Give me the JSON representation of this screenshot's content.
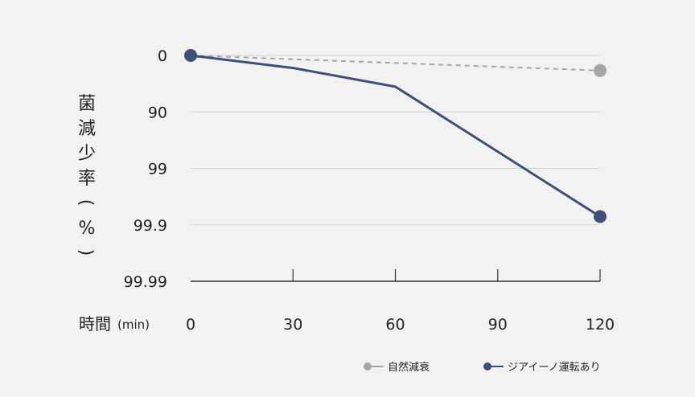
{
  "chart_data": {
    "type": "line",
    "ylabel_chars": [
      "菌",
      "減",
      "少",
      "率",
      "(",
      "%",
      ")"
    ],
    "xlabel": "時間",
    "xlabel_unit": "(min)",
    "y_scale": "log-reduction",
    "y_ticks": [
      "0",
      "90",
      "99",
      "99.9",
      "99.99"
    ],
    "x_ticks": [
      "0",
      "30",
      "60",
      "90",
      "120"
    ],
    "x": [
      0,
      30,
      60,
      90,
      120
    ],
    "xlim": [
      0,
      120
    ],
    "grid": true,
    "legend_position": "bottom-right",
    "series": [
      {
        "name": "自然減衰",
        "color": "#a6a6a6",
        "style": "dashed",
        "points": [
          {
            "x": 0,
            "y": 0
          },
          {
            "x": 120,
            "y": 46
          }
        ]
      },
      {
        "name": "ジアイーノ運転あり",
        "color": "#3e5078",
        "style": "solid",
        "points": [
          {
            "x": 0,
            "y": 0
          },
          {
            "x": 30,
            "y": 40
          },
          {
            "x": 60,
            "y": 72
          },
          {
            "x": 120,
            "y": 99.86
          }
        ]
      }
    ]
  }
}
